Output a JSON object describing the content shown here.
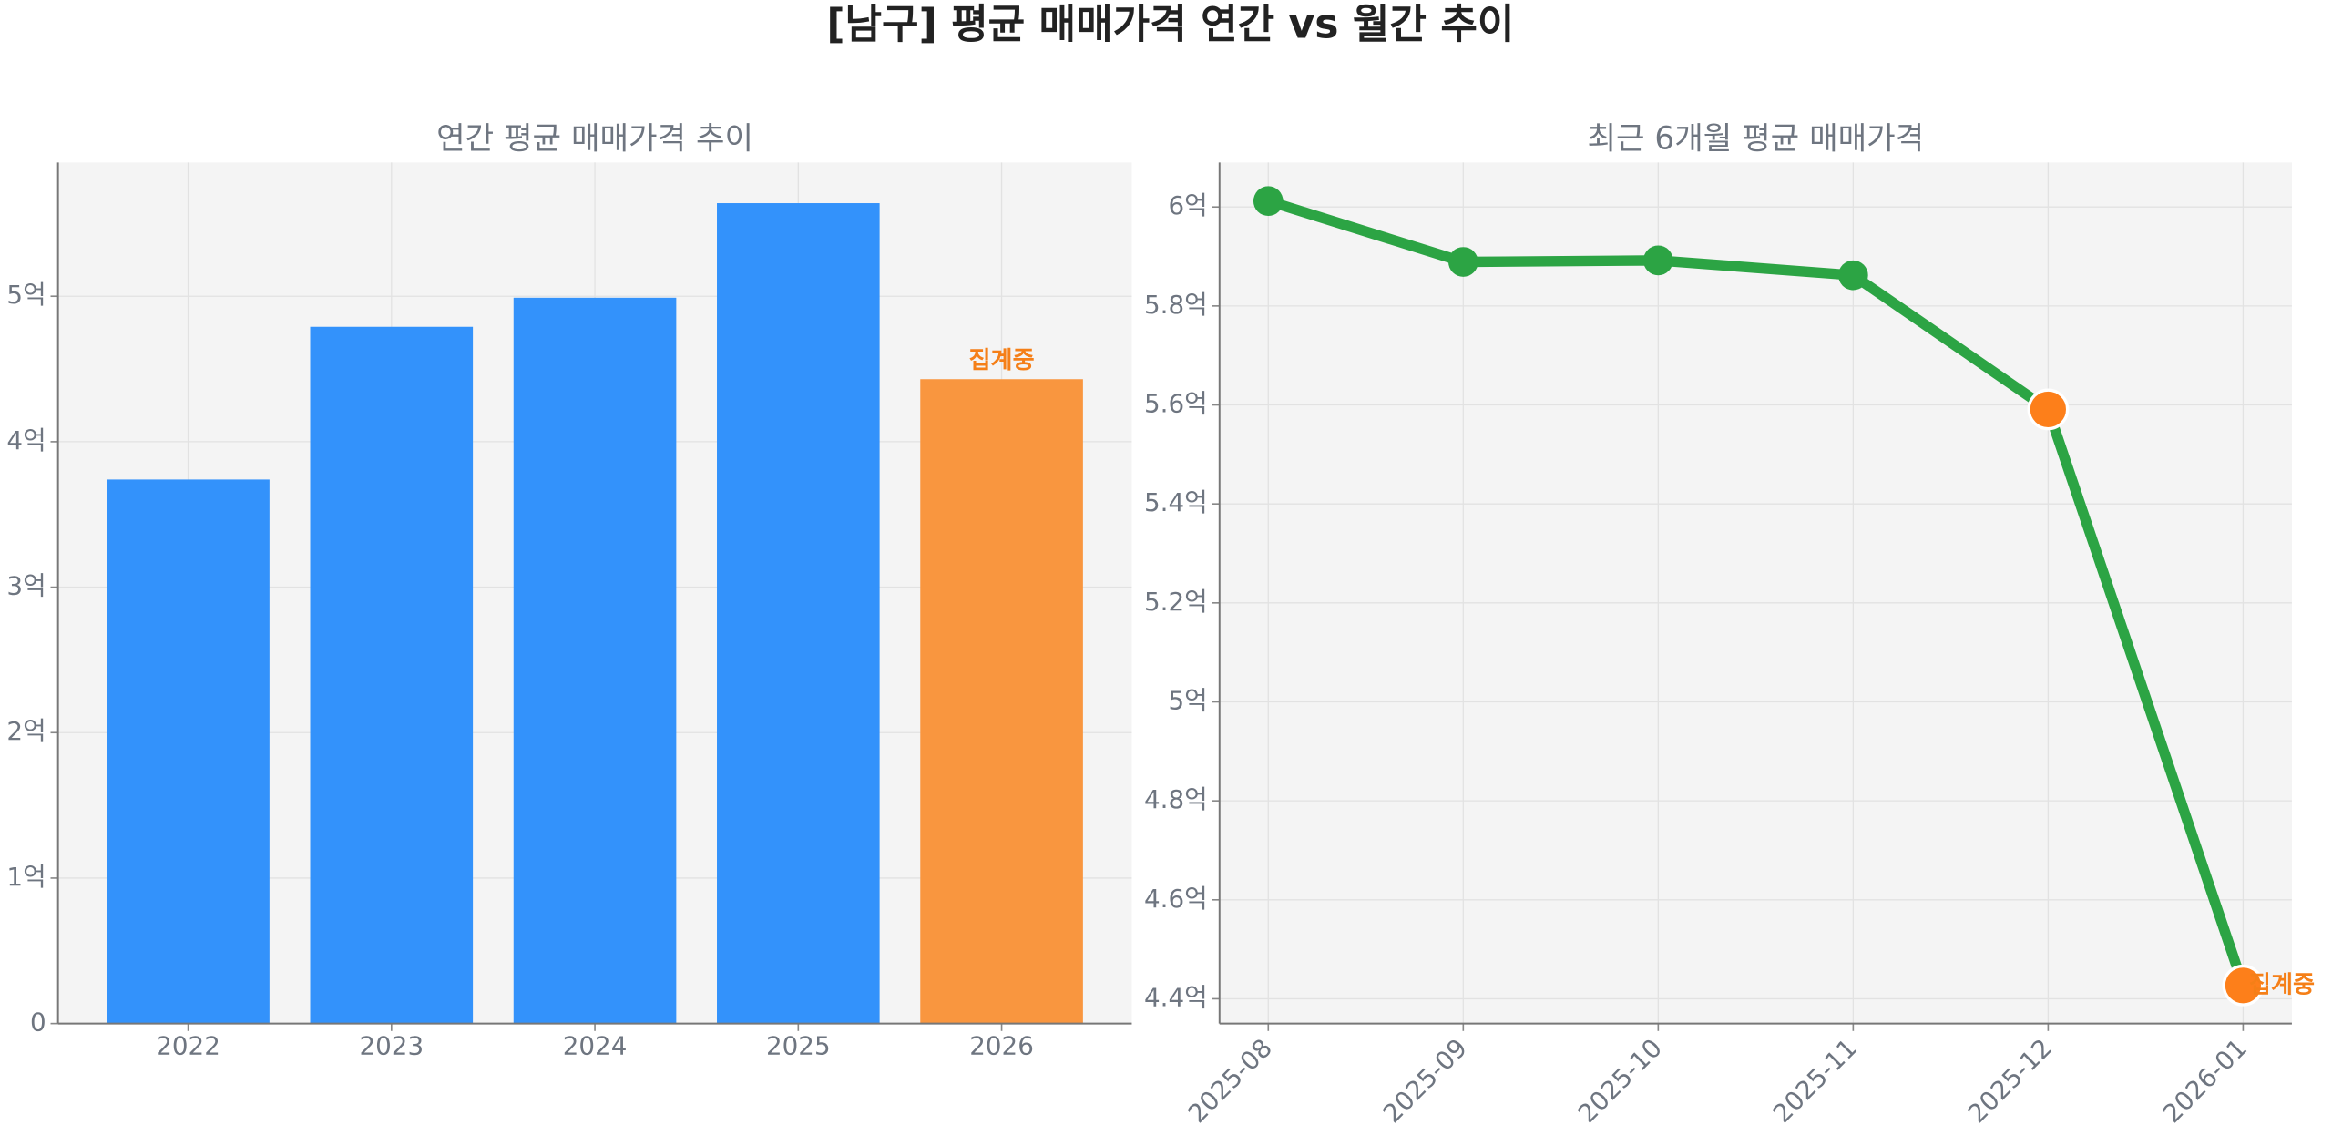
{
  "title": "[남구] 평균 매매가격 연간 vs 월간 추이",
  "chart_data": [
    {
      "type": "bar",
      "title": "연간 평균 매매가격 추이",
      "categories": [
        "2022",
        "2023",
        "2024",
        "2025",
        "2026"
      ],
      "values": [
        3.74,
        4.79,
        4.99,
        5.64,
        4.43
      ],
      "colors": [
        "#3392fb",
        "#3392fb",
        "#3392fb",
        "#3392fb",
        "#f9963f"
      ],
      "ylim": [
        0,
        5.92
      ],
      "yticks": [
        0,
        {
          "value": 1,
          "label": "1억"
        },
        {
          "value": 2,
          "label": "2억"
        },
        {
          "value": 3,
          "label": "3억"
        },
        {
          "value": 4,
          "label": "4억"
        },
        {
          "value": 5,
          "label": "5억"
        }
      ],
      "grid": true,
      "annotations": [
        {
          "text": "집계중",
          "category": "2026",
          "color": "#f57f17"
        }
      ]
    },
    {
      "type": "line",
      "title": "최근 6개월 평균 매매가격",
      "categories": [
        "2025-08",
        "2025-09",
        "2025-10",
        "2025-11",
        "2025-12",
        "2026-01"
      ],
      "values": [
        6.012,
        5.889,
        5.892,
        5.862,
        5.591,
        4.427
      ],
      "color": "#2ca444",
      "marker_colors": [
        "#2ca444",
        "#2ca444",
        "#2ca444",
        "#2ca444",
        "#fd7f1a",
        "#fd7f1a"
      ],
      "ylim": [
        4.35,
        6.09
      ],
      "yticks": [
        {
          "value": 4.4,
          "label": "4.4억"
        },
        {
          "value": 4.6,
          "label": "4.6억"
        },
        {
          "value": 4.8,
          "label": "4.8억"
        },
        {
          "value": 5,
          "label": "5억"
        },
        {
          "value": 5.2,
          "label": "5.2억"
        },
        {
          "value": 5.4,
          "label": "5.4억"
        },
        {
          "value": 5.6,
          "label": "5.6억"
        },
        {
          "value": 5.8,
          "label": "5.8억"
        },
        {
          "value": 6,
          "label": "6억"
        }
      ],
      "grid": true,
      "annotations": [
        {
          "text": "집계중",
          "category": "2026-01",
          "color": "#f57f17"
        }
      ]
    }
  ]
}
